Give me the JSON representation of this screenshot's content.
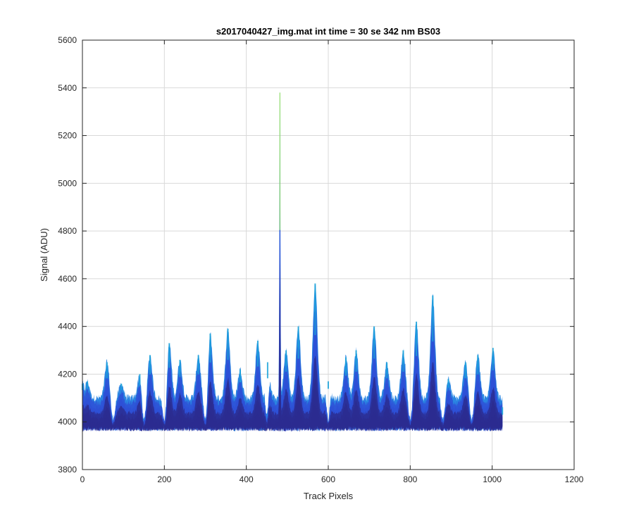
{
  "chart_data": {
    "type": "line",
    "title": "s2017040427_img.mat int time = 30 se  342 nm BS03",
    "xlabel": "Track Pixels",
    "ylabel": "Signal (ADU)",
    "xlim": [
      0,
      1200
    ],
    "ylim": [
      3800,
      5600
    ],
    "xticks": [
      "0",
      "200",
      "400",
      "600",
      "800",
      "1000",
      "1200"
    ],
    "yticks": [
      "3800",
      "4000",
      "4200",
      "4400",
      "4600",
      "4800",
      "5000",
      "5200",
      "5400",
      "5600"
    ],
    "grid": true,
    "colormap": [
      "#2b2b8f",
      "#2e4fd6",
      "#1f7fe0",
      "#1aa3d9",
      "#37c8b0",
      "#8fdc6a"
    ],
    "series": [
      {
        "baseline_min": 3960,
        "baseline_max": 3985,
        "floor": 4100,
        "x": [
          0,
          12,
          60,
          95,
          140,
          165,
          212,
          238,
          283,
          312,
          355,
          385,
          428,
          452,
          482,
          497,
          527,
          568,
          600,
          643,
          668,
          712,
          743,
          783,
          815,
          855,
          893,
          935,
          965,
          1002,
          1025
        ],
        "values": [
          4160,
          4170,
          4250,
          4160,
          4200,
          4280,
          4330,
          4260,
          4280,
          4370,
          4390,
          4220,
          4340,
          4250,
          5380,
          4300,
          4400,
          4580,
          4170,
          4270,
          4300,
          4400,
          4250,
          4300,
          4420,
          4530,
          4180,
          4250,
          4280,
          4310,
          4030
        ],
        "dips": [
          {
            "x": 75,
            "value": 4010
          },
          {
            "x": 150,
            "value": 4010
          },
          {
            "x": 200,
            "value": 4010
          },
          {
            "x": 300,
            "value": 4015
          },
          {
            "x": 450,
            "value": 4020
          },
          {
            "x": 600,
            "value": 4010
          },
          {
            "x": 800,
            "value": 4010
          },
          {
            "x": 880,
            "value": 4010
          },
          {
            "x": 950,
            "value": 4010
          }
        ]
      }
    ]
  }
}
